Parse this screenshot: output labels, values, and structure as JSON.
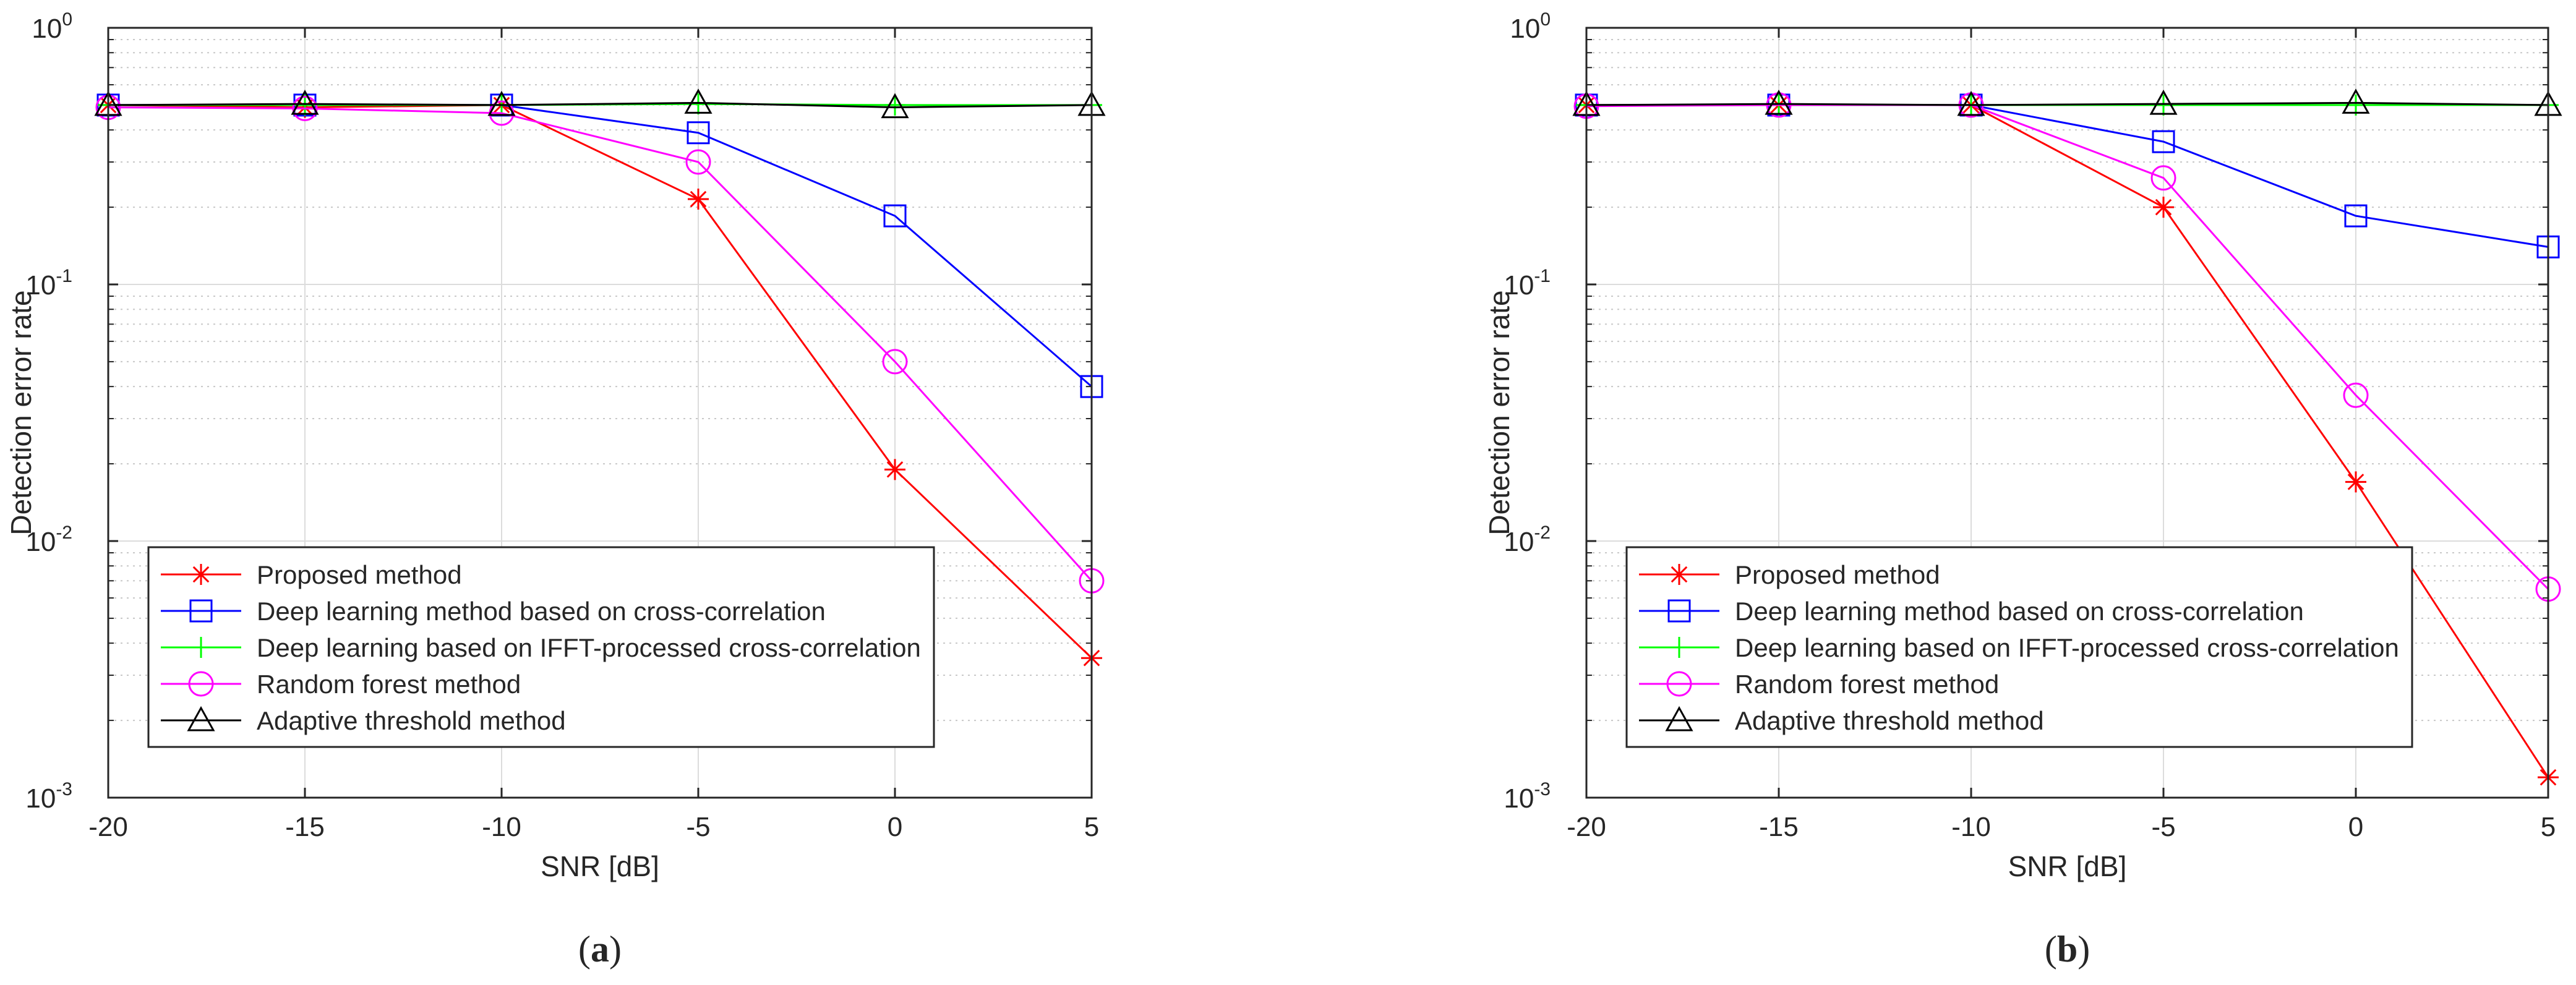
{
  "chart_data": [
    {
      "type": "line",
      "panel_label": "a",
      "xlabel": "SNR [dB]",
      "ylabel": "Detection error rate",
      "y_scale": "log",
      "xlim": [
        -20,
        5
      ],
      "ylim": [
        0.001,
        1
      ],
      "x_ticks": [
        "-20",
        "-15",
        "-10",
        "-5",
        "0",
        "5"
      ],
      "y_ticks": [
        {
          "base": "10",
          "exp": "-3"
        },
        {
          "base": "10",
          "exp": "-2"
        },
        {
          "base": "10",
          "exp": "-1"
        },
        {
          "base": "10",
          "exp": "0"
        }
      ],
      "grid": true,
      "legend_position": "bottom-left",
      "x": [
        -20,
        -15,
        -10,
        -5,
        0,
        5
      ],
      "series": [
        {
          "name": "Proposed method",
          "color": "#ff0000",
          "marker": "star",
          "values": [
            0.5,
            0.49,
            0.5,
            0.215,
            0.019,
            0.0035
          ]
        },
        {
          "name": "Deep learning method based on cross-correlation",
          "color": "#0000ff",
          "marker": "square",
          "values": [
            0.5,
            0.5,
            0.5,
            0.39,
            0.185,
            0.04
          ]
        },
        {
          "name": "Deep learning based on IFFT-processed cross-correlation",
          "color": "#00ff00",
          "marker": "plus",
          "values": [
            0.5,
            0.5,
            0.5,
            0.505,
            0.5,
            0.5
          ]
        },
        {
          "name": "Random forest method",
          "color": "#ff00ff",
          "marker": "circle",
          "values": [
            0.49,
            0.485,
            0.465,
            0.3,
            0.05,
            0.007
          ]
        },
        {
          "name": "Adaptive threshold method",
          "color": "#000000",
          "marker": "triangle",
          "values": [
            0.5,
            0.505,
            0.5,
            0.51,
            0.49,
            0.5
          ]
        }
      ]
    },
    {
      "type": "line",
      "panel_label": "b",
      "xlabel": "SNR [dB]",
      "ylabel": "Detection error rate",
      "y_scale": "log",
      "xlim": [
        -20,
        5
      ],
      "ylim": [
        0.001,
        1
      ],
      "x_ticks": [
        "-20",
        "-15",
        "-10",
        "-5",
        "0",
        "5"
      ],
      "y_ticks": [
        {
          "base": "10",
          "exp": "-3"
        },
        {
          "base": "10",
          "exp": "-2"
        },
        {
          "base": "10",
          "exp": "-1"
        },
        {
          "base": "10",
          "exp": "0"
        }
      ],
      "grid": true,
      "legend_position": "bottom-left",
      "x": [
        -20,
        -15,
        -10,
        -5,
        0,
        5
      ],
      "series": [
        {
          "name": "Proposed method",
          "color": "#ff0000",
          "marker": "star",
          "values": [
            0.5,
            0.5,
            0.5,
            0.2,
            0.017,
            0.0012
          ]
        },
        {
          "name": "Deep learning method based on cross-correlation",
          "color": "#0000ff",
          "marker": "square",
          "values": [
            0.5,
            0.5,
            0.5,
            0.36,
            0.185,
            0.14
          ]
        },
        {
          "name": "Deep learning based on IFFT-processed cross-correlation",
          "color": "#00ff00",
          "marker": "plus",
          "values": [
            0.5,
            0.5,
            0.5,
            0.5,
            0.5,
            0.5
          ]
        },
        {
          "name": "Random forest method",
          "color": "#ff00ff",
          "marker": "circle",
          "values": [
            0.495,
            0.5,
            0.5,
            0.26,
            0.037,
            0.0065
          ]
        },
        {
          "name": "Adaptive threshold method",
          "color": "#000000",
          "marker": "triangle",
          "values": [
            0.5,
            0.505,
            0.5,
            0.505,
            0.51,
            0.5
          ]
        }
      ]
    }
  ]
}
